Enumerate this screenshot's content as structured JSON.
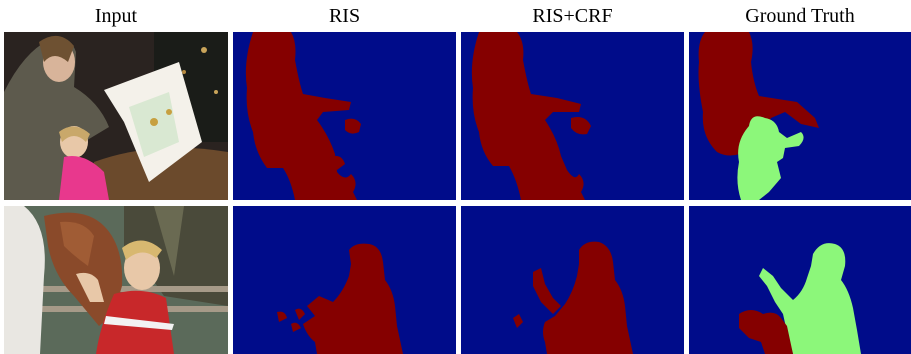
{
  "columns": [
    "Input",
    "RIS",
    "RIS+CRF",
    "Ground Truth"
  ],
  "colors": {
    "background_class": "#000c8a",
    "person_instance_1": "#850000",
    "person_instance_2": "#8cf77a"
  },
  "rows": [
    {
      "input_scene": "woman reading a book to a child at a table",
      "panels": [
        "photo",
        "ris-mask",
        "ris-crf-mask",
        "ground-truth-mask"
      ]
    },
    {
      "input_scene": "boy hugging a brown horse beside a fence",
      "panels": [
        "photo",
        "ris-mask",
        "ris-crf-mask",
        "ground-truth-mask"
      ]
    }
  ]
}
